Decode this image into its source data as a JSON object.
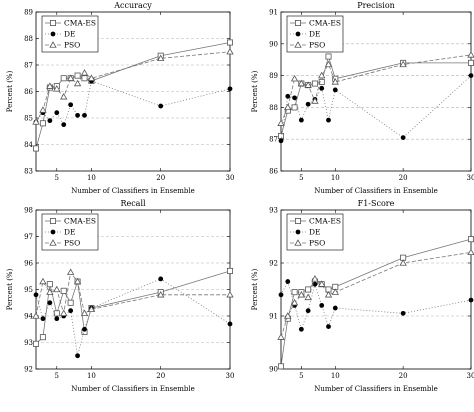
{
  "chart_data": [
    {
      "type": "line",
      "title": "Accuracy",
      "xlabel": "Number of Classifiers in Ensemble",
      "ylabel": "Percent (%)",
      "xlim": [
        2,
        30
      ],
      "ylim": [
        83,
        89
      ],
      "xticks": [
        5,
        10,
        20,
        30
      ],
      "yticks": [
        83,
        84,
        85,
        86,
        87,
        88,
        89
      ],
      "legend": "top-left",
      "grid": "horizontal-dashed",
      "series": [
        {
          "name": "CMA-ES",
          "style": "cma",
          "x": [
            2,
            3,
            4,
            5,
            6,
            7,
            8,
            9,
            10,
            20,
            30
          ],
          "y": [
            83.85,
            84.8,
            86.15,
            86.2,
            86.5,
            86.5,
            86.6,
            86.5,
            86.4,
            87.35,
            87.85
          ]
        },
        {
          "name": "DE",
          "style": "de",
          "x": [
            2,
            3,
            4,
            5,
            6,
            7,
            8,
            9,
            10,
            20,
            30
          ],
          "y": [
            84.85,
            85.2,
            84.9,
            85.2,
            84.75,
            85.5,
            85.1,
            85.1,
            86.4,
            85.45,
            86.1
          ]
        },
        {
          "name": "PSO",
          "style": "pso",
          "x": [
            2,
            3,
            4,
            5,
            6,
            7,
            8,
            9,
            10,
            20,
            30
          ],
          "y": [
            84.85,
            85.3,
            86.2,
            86.1,
            85.8,
            86.5,
            86.3,
            86.7,
            86.5,
            87.25,
            87.5
          ]
        }
      ]
    },
    {
      "type": "line",
      "title": "Precision",
      "xlabel": "Number of Classifiers in Ensemble",
      "ylabel": "Percent (%)",
      "xlim": [
        2,
        30
      ],
      "ylim": [
        86,
        91
      ],
      "xticks": [
        5,
        10,
        20,
        30
      ],
      "yticks": [
        86,
        87,
        88,
        89,
        90,
        91
      ],
      "legend": "top-left",
      "grid": "horizontal-dashed",
      "series": [
        {
          "name": "CMA-ES",
          "style": "cma",
          "x": [
            2,
            3,
            4,
            5,
            6,
            7,
            8,
            9,
            10,
            20,
            30
          ],
          "y": [
            87.1,
            87.9,
            88.0,
            88.75,
            88.7,
            88.75,
            88.8,
            89.6,
            88.9,
            89.4,
            89.4
          ]
        },
        {
          "name": "DE",
          "style": "de",
          "x": [
            2,
            3,
            4,
            5,
            6,
            7,
            8,
            9,
            10,
            20,
            30
          ],
          "y": [
            86.95,
            88.35,
            88.3,
            87.6,
            88.1,
            88.25,
            88.6,
            87.6,
            88.55,
            87.05,
            89.0
          ]
        },
        {
          "name": "PSO",
          "style": "pso",
          "x": [
            2,
            3,
            4,
            5,
            6,
            7,
            8,
            9,
            10,
            20,
            30
          ],
          "y": [
            87.5,
            88.0,
            88.9,
            88.75,
            88.7,
            88.2,
            89.0,
            89.35,
            88.8,
            89.35,
            89.65
          ]
        }
      ]
    },
    {
      "type": "line",
      "title": "Recall",
      "xlabel": "Number of Classifiers in Ensemble",
      "ylabel": "Percent (%)",
      "xlim": [
        2,
        30
      ],
      "ylim": [
        92,
        98
      ],
      "xticks": [
        5,
        10,
        20,
        30
      ],
      "yticks": [
        92,
        93,
        94,
        95,
        96,
        97,
        98
      ],
      "legend": "top-left",
      "grid": "horizontal-dashed",
      "series": [
        {
          "name": "CMA-ES",
          "style": "cma",
          "x": [
            2,
            3,
            4,
            5,
            6,
            7,
            8,
            9,
            10,
            20,
            30
          ],
          "y": [
            92.95,
            93.2,
            95.2,
            94.1,
            94.95,
            94.5,
            95.3,
            93.4,
            94.3,
            94.9,
            95.7
          ]
        },
        {
          "name": "DE",
          "style": "de",
          "x": [
            2,
            3,
            4,
            5,
            6,
            7,
            8,
            9,
            10,
            20,
            30
          ],
          "y": [
            94.8,
            93.9,
            94.5,
            93.9,
            94.0,
            94.2,
            92.5,
            93.5,
            94.3,
            95.4,
            93.7
          ]
        },
        {
          "name": "PSO",
          "style": "pso",
          "x": [
            2,
            3,
            4,
            5,
            6,
            7,
            8,
            9,
            10,
            20,
            30
          ],
          "y": [
            94.0,
            95.3,
            94.9,
            95.0,
            94.1,
            95.65,
            95.3,
            94.1,
            94.25,
            94.8,
            94.8
          ]
        }
      ]
    },
    {
      "type": "line",
      "title": "F1-Score",
      "xlabel": "Number of Classifiers in Ensemble",
      "ylabel": "Percent (%)",
      "xlim": [
        2,
        30
      ],
      "ylim": [
        90,
        93
      ],
      "xticks": [
        5,
        10,
        20,
        30
      ],
      "yticks": [
        90,
        91,
        92,
        93
      ],
      "legend": "top-left",
      "grid": "horizontal-dashed",
      "series": [
        {
          "name": "CMA-ES",
          "style": "cma",
          "x": [
            2,
            3,
            4,
            5,
            6,
            7,
            8,
            9,
            10,
            20,
            30
          ],
          "y": [
            90.05,
            90.95,
            91.45,
            91.45,
            91.5,
            91.65,
            91.6,
            91.5,
            91.55,
            92.1,
            92.45
          ]
        },
        {
          "name": "DE",
          "style": "de",
          "x": [
            2,
            3,
            4,
            5,
            6,
            7,
            8,
            9,
            10,
            20,
            30
          ],
          "y": [
            91.4,
            91.65,
            91.2,
            90.75,
            91.1,
            91.6,
            91.2,
            90.8,
            91.15,
            91.05,
            91.3
          ]
        },
        {
          "name": "PSO",
          "style": "pso",
          "x": [
            2,
            3,
            4,
            5,
            6,
            7,
            8,
            9,
            10,
            20,
            30
          ],
          "y": [
            90.6,
            91.0,
            91.25,
            91.4,
            91.35,
            91.7,
            91.6,
            91.4,
            91.45,
            92.0,
            92.2
          ]
        }
      ]
    }
  ]
}
